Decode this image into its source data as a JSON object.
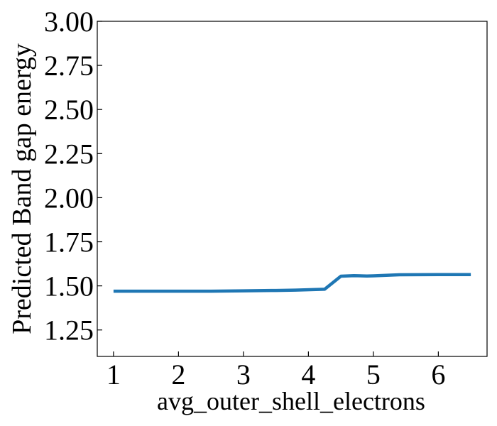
{
  "chart_data": {
    "type": "line",
    "title": "",
    "xlabel": "avg_outer_shell_electrons",
    "ylabel": "Predicted Band gap energy",
    "xlim": [
      0.75,
      6.75
    ],
    "ylim": [
      1.1,
      3.0
    ],
    "xticks": [
      1,
      2,
      3,
      4,
      5,
      6
    ],
    "yticks": [
      1.25,
      1.5,
      1.75,
      2.0,
      2.25,
      2.5,
      2.75,
      3.0
    ],
    "ytick_labels": [
      "1.25",
      "1.50",
      "1.75",
      "2.00",
      "2.25",
      "2.50",
      "2.75",
      "3.00"
    ],
    "grid": false,
    "series": [
      {
        "color": "#1f77b4",
        "x": [
          1.0,
          1.5,
          2.0,
          2.5,
          3.0,
          3.5,
          3.8,
          4.25,
          4.5,
          4.7,
          4.9,
          5.0,
          5.4,
          6.0,
          6.5
        ],
        "y": [
          1.47,
          1.47,
          1.47,
          1.47,
          1.472,
          1.474,
          1.476,
          1.481,
          1.555,
          1.558,
          1.556,
          1.557,
          1.563,
          1.564,
          1.564
        ]
      }
    ]
  }
}
